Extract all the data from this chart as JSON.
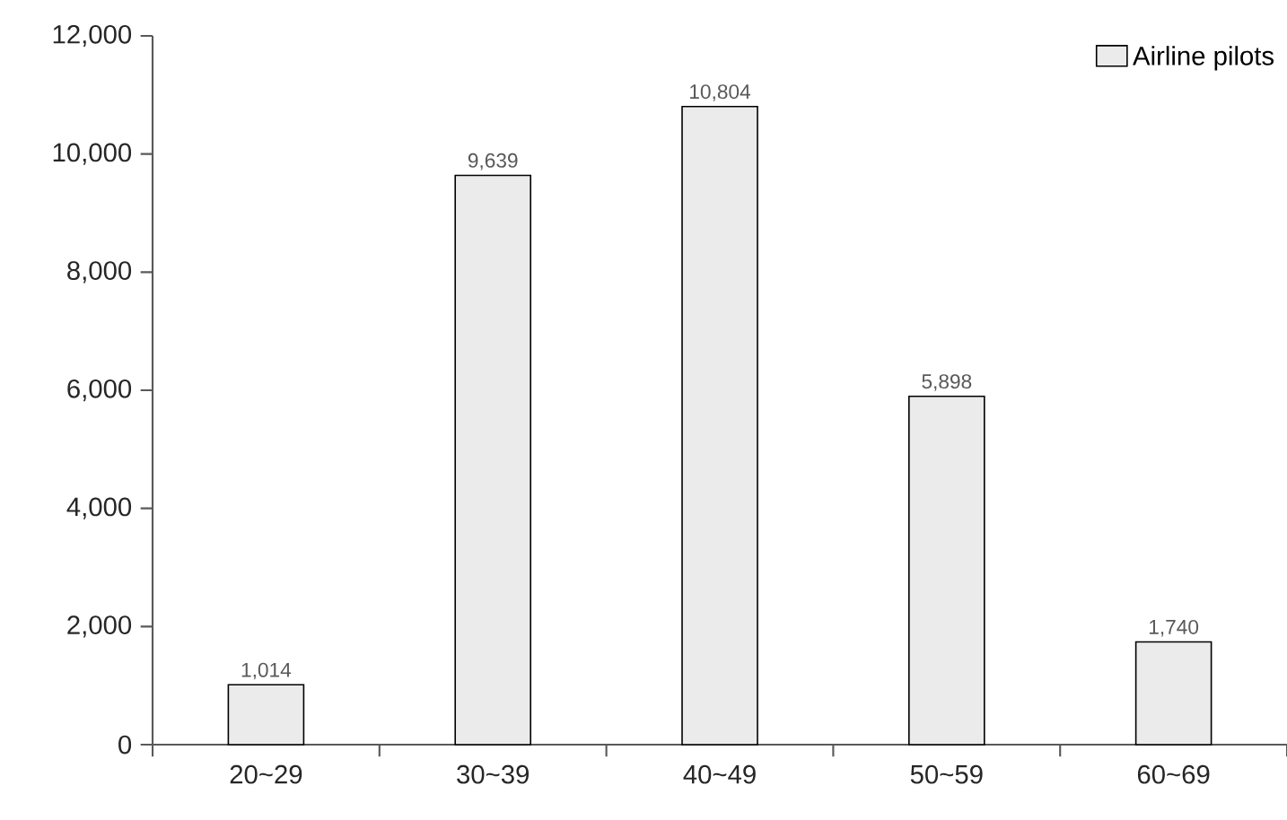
{
  "chart_data": {
    "type": "bar",
    "categories": [
      "20~29",
      "30~39",
      "40~49",
      "50~59",
      "60~69"
    ],
    "series": [
      {
        "name": "Airline pilots",
        "color": "#ebebeb",
        "values": [
          1014,
          9639,
          10804,
          5898,
          1740
        ],
        "value_labels": [
          "1,014",
          "9,639",
          "10,804",
          "5,898",
          "1,740"
        ]
      }
    ],
    "ylim": [
      0,
      12000
    ],
    "yticks": [
      0,
      {
        "value": 2000,
        "label": "2,000"
      },
      {
        "value": 4000,
        "label": "4,000"
      },
      {
        "value": 6000,
        "label": "6,000"
      },
      {
        "value": 8000,
        "label": "8,000"
      },
      {
        "value": 10000,
        "label": "10,000"
      },
      {
        "value": 12000,
        "label": "12,000"
      }
    ],
    "legend": "top right",
    "grid": false
  }
}
